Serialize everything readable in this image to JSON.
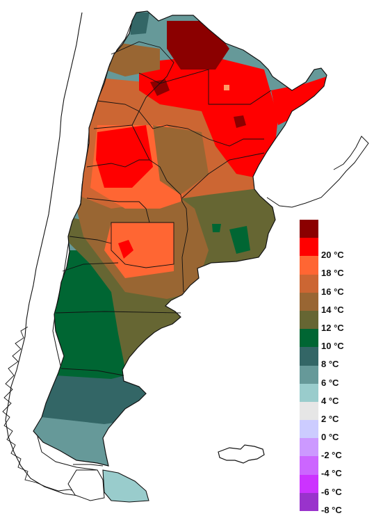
{
  "legend": {
    "title": "",
    "items": [
      {
        "label": "",
        "color": "#8b0000"
      },
      {
        "label": "20 °C",
        "color": "#ff0000"
      },
      {
        "label": "18 °C",
        "color": "#ff6633"
      },
      {
        "label": "16 °C",
        "color": "#cc6633"
      },
      {
        "label": "14 °C",
        "color": "#996633"
      },
      {
        "label": "12 °C",
        "color": "#666633"
      },
      {
        "label": "10 °C",
        "color": "#006633"
      },
      {
        "label": "8 °C",
        "color": "#336666"
      },
      {
        "label": "6 °C",
        "color": "#669999"
      },
      {
        "label": "4 °C",
        "color": "#99cccc"
      },
      {
        "label": "2 °C",
        "color": "#e6e6e6"
      },
      {
        "label": "0 °C",
        "color": "#ccccff"
      },
      {
        "label": "-2 °C",
        "color": "#cc99ff"
      },
      {
        "label": "-4 °C",
        "color": "#cc66ff"
      },
      {
        "label": "-6 °C",
        "color": "#cc33ff"
      },
      {
        "label": "-8 °C",
        "color": "#9933cc"
      }
    ]
  },
  "colors": {
    "background": "#ffffff",
    "boundary": "#111111"
  }
}
